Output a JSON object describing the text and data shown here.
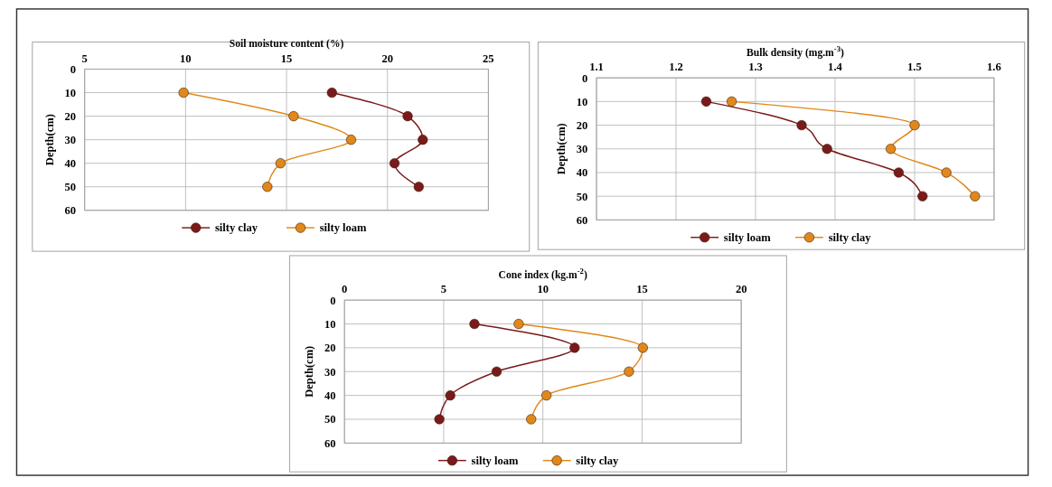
{
  "chart_data": [
    {
      "type": "line",
      "title": "Soil moisture content (%)",
      "ylabel": "Depth(cm)",
      "xlim": [
        5,
        25
      ],
      "xticks": [
        5,
        10,
        15,
        20,
        25
      ],
      "ylim": [
        60,
        0
      ],
      "yticks": [
        0,
        10,
        20,
        30,
        40,
        50,
        60
      ],
      "grid": true,
      "legend": "bottom",
      "marker": "circle",
      "series": [
        {
          "name": "silty clay",
          "color": "#7a1a1a",
          "x": [
            17.25,
            21.0,
            21.75,
            20.35,
            21.55
          ],
          "values": [
            10,
            20,
            30,
            40,
            50
          ]
        },
        {
          "name": "silty loam",
          "color": "#e0881a",
          "x": [
            9.9,
            15.35,
            18.2,
            14.7,
            14.05
          ],
          "values": [
            10,
            20,
            30,
            40,
            50
          ]
        }
      ]
    },
    {
      "type": "line",
      "title": "Bulk density (mg.m$^{-3}$)",
      "ylabel": "Depth(cm)",
      "xlim": [
        1.1,
        1.6
      ],
      "xticks": [
        1.1,
        1.2,
        1.3,
        1.4,
        1.5,
        1.6
      ],
      "ylim": [
        60,
        0
      ],
      "yticks": [
        0,
        10,
        20,
        30,
        40,
        50,
        60
      ],
      "grid": true,
      "legend": "bottom",
      "marker": "circle",
      "series": [
        {
          "name": "silty loam",
          "color": "#7a1a1a",
          "x": [
            1.238,
            1.358,
            1.39,
            1.48,
            1.51
          ],
          "values": [
            10,
            20,
            30,
            40,
            50
          ]
        },
        {
          "name": "silty clay",
          "color": "#e0881a",
          "x": [
            1.27,
            1.5,
            1.47,
            1.54,
            1.576
          ],
          "values": [
            10,
            20,
            30,
            40,
            50
          ]
        }
      ]
    },
    {
      "type": "line",
      "title": "Cone index  (kg.m$^{-2}$)",
      "ylabel": "Depth(cm)",
      "xlim": [
        0,
        20
      ],
      "xticks": [
        0,
        5,
        10,
        15,
        20
      ],
      "ylim": [
        60,
        0
      ],
      "yticks": [
        0,
        10,
        20,
        30,
        40,
        50,
        60
      ],
      "grid": true,
      "legend": "bottom",
      "marker": "circle",
      "series": [
        {
          "name": "silty loam",
          "color": "#7a1a1a",
          "x": [
            6.55,
            11.6,
            7.67,
            5.33,
            4.78
          ],
          "values": [
            10,
            20,
            30,
            40,
            50
          ]
        },
        {
          "name": "silty clay",
          "color": "#e0881a",
          "x": [
            8.78,
            15.04,
            14.34,
            10.18,
            9.41
          ],
          "values": [
            10,
            20,
            30,
            40,
            50
          ]
        }
      ]
    }
  ]
}
